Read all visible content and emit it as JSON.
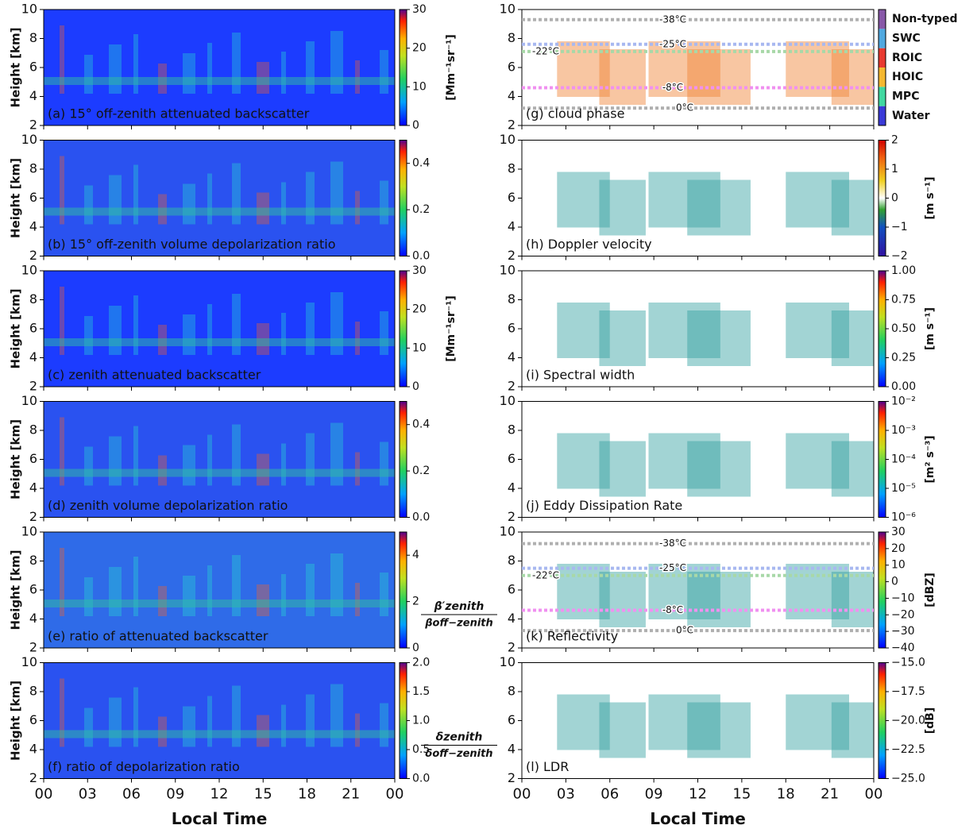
{
  "chart_data": [
    {
      "type": "heatmap",
      "label": "(a) 15° off-zenith attenuated backscatter",
      "ylabel": "Height [km]",
      "ylim": [
        2,
        10
      ],
      "yticks": [
        2,
        4,
        6,
        8,
        10
      ],
      "xlim": [
        0,
        24
      ],
      "xticks": [
        0,
        3,
        6,
        9,
        12,
        15,
        18,
        21,
        24
      ],
      "background": "#1c3cff",
      "colorbar": {
        "lim": [
          0,
          30
        ],
        "ticks": [
          0,
          10,
          20,
          30
        ],
        "label": "[Mm⁻¹sr⁻¹]",
        "colormap": "jet"
      }
    },
    {
      "type": "heatmap",
      "label": "(b) 15° off-zenith volume depolarization ratio",
      "ylabel": "Height [km]",
      "ylim": [
        2,
        10
      ],
      "yticks": [
        2,
        4,
        6,
        8,
        10
      ],
      "xlim": [
        0,
        24
      ],
      "xticks": [
        0,
        3,
        6,
        9,
        12,
        15,
        18,
        21,
        24
      ],
      "background": "#2a52f0",
      "colorbar": {
        "lim": [
          0,
          0.5
        ],
        "ticks": [
          {
            "value": 0,
            "label": "0.0"
          },
          0.2,
          0.4
        ],
        "colormap": "jet"
      }
    },
    {
      "type": "heatmap",
      "label": "(c) zenith attenuated backscatter",
      "ylabel": "Height [km]",
      "ylim": [
        2,
        10
      ],
      "yticks": [
        2,
        4,
        6,
        8,
        10
      ],
      "xlim": [
        0,
        24
      ],
      "xticks": [
        0,
        3,
        6,
        9,
        12,
        15,
        18,
        21,
        24
      ],
      "background": "#1c3cff",
      "colorbar": {
        "lim": [
          0,
          30
        ],
        "ticks": [
          0,
          10,
          20,
          30
        ],
        "label": "[Mm⁻¹sr⁻¹]",
        "colormap": "jet"
      }
    },
    {
      "type": "heatmap",
      "label": "(d) zenith volume depolarization ratio",
      "ylabel": "Height [km]",
      "ylim": [
        2,
        10
      ],
      "yticks": [
        2,
        4,
        6,
        8,
        10
      ],
      "xlim": [
        0,
        24
      ],
      "xticks": [
        0,
        3,
        6,
        9,
        12,
        15,
        18,
        21,
        24
      ],
      "background": "#2a52f0",
      "colorbar": {
        "lim": [
          0,
          0.5
        ],
        "ticks": [
          {
            "value": 0,
            "label": "0.0"
          },
          0.2,
          0.4
        ],
        "colormap": "jet"
      }
    },
    {
      "type": "heatmap",
      "label": "(e) ratio of attenuated backscatter",
      "ylabel": "Height [km]",
      "ylim": [
        2,
        10
      ],
      "yticks": [
        2,
        4,
        6,
        8,
        10
      ],
      "xlim": [
        0,
        24
      ],
      "xticks": [
        0,
        3,
        6,
        9,
        12,
        15,
        18,
        21,
        24
      ],
      "background": "#2f6be8",
      "colorbar": {
        "lim": [
          0,
          5
        ],
        "ticks": [
          0,
          2,
          4
        ],
        "numerator": "β′zenith",
        "denominator": "βoff−zenith",
        "colormap": "jet"
      }
    },
    {
      "type": "heatmap",
      "label": "(f) ratio of depolarization ratio",
      "ylabel": "Height [km]",
      "ylim": [
        2,
        10
      ],
      "yticks": [
        2,
        4,
        6,
        8,
        10
      ],
      "xlim": [
        0,
        24
      ],
      "xticks": [
        {
          "value": 0,
          "label": "00"
        },
        {
          "value": 3,
          "label": "03"
        },
        {
          "value": 6,
          "label": "06"
        },
        {
          "value": 9,
          "label": "09"
        },
        12,
        15,
        18,
        21,
        {
          "value": 24,
          "label": "00"
        }
      ],
      "xlabel": "Local Time",
      "background": "#2a52f0",
      "colorbar": {
        "lim": [
          0,
          2
        ],
        "ticks": [
          {
            "value": 0,
            "label": "0.0"
          },
          {
            "value": 0.5,
            "label": "0.5"
          },
          {
            "value": 1,
            "label": "1.0"
          },
          {
            "value": 1.5,
            "label": "1.5"
          },
          {
            "value": 2,
            "label": "2.0"
          }
        ],
        "numerator": "δzenith",
        "denominator": "δoff−zenith",
        "colormap": "jet"
      }
    },
    {
      "type": "heatmap",
      "label": "(g) cloud phase",
      "ylim": [
        2,
        10
      ],
      "yticks": [
        2,
        4,
        6,
        8,
        10
      ],
      "xlim": [
        0,
        24
      ],
      "xticks": [
        0,
        3,
        6,
        9,
        12,
        15,
        18,
        21,
        24
      ],
      "background": "#ffffff",
      "colorbar": {
        "categories": [
          "Water",
          "MPC",
          "HOIC",
          "ROIC",
          "SWC",
          "Non-typed"
        ],
        "colors": [
          "#3a3ad8",
          "#40d8a0",
          "#f5b830",
          "#e83a30",
          "#50a8e0",
          "#8858a8"
        ]
      },
      "isotherms": [
        {
          "label": "-38°C",
          "height": 9.3,
          "color": "#b0b0b0",
          "text_color": "#222222"
        },
        {
          "label": "-25°C",
          "height": 7.6,
          "color": "#a8b8f0",
          "text_color": "#2020d0"
        },
        {
          "label": "-22°C",
          "height": 7.1,
          "color": "#a8d8a8",
          "text_color": "#208020"
        },
        {
          "label": "-8°C",
          "height": 4.6,
          "color": "#f090f0",
          "text_color": "#d020d0"
        },
        {
          "label": "0°C",
          "height": 3.2,
          "color": "#b0b0b0",
          "text_color": "#222222"
        }
      ]
    },
    {
      "type": "heatmap",
      "label": "(h) Doppler velocity",
      "ylim": [
        2,
        10
      ],
      "yticks": [
        2,
        4,
        6,
        8,
        10
      ],
      "xlim": [
        0,
        24
      ],
      "xticks": [
        0,
        3,
        6,
        9,
        12,
        15,
        18,
        21,
        24
      ],
      "background": "#ffffff",
      "colorbar": {
        "lim": [
          -2,
          2
        ],
        "ticks": [
          {
            "value": -2,
            "label": "−2"
          },
          {
            "value": -1,
            "label": "−1"
          },
          0,
          1,
          2
        ],
        "label": "[m s⁻¹]",
        "colormap": "diverging"
      }
    },
    {
      "type": "heatmap",
      "label": "(i) Spectral width",
      "ylim": [
        2,
        10
      ],
      "yticks": [
        2,
        4,
        6,
        8,
        10
      ],
      "xlim": [
        0,
        24
      ],
      "xticks": [
        0,
        3,
        6,
        9,
        12,
        15,
        18,
        21,
        24
      ],
      "background": "#ffffff",
      "colorbar": {
        "lim": [
          0,
          1
        ],
        "ticks": [
          {
            "value": 0,
            "label": "0.00"
          },
          {
            "value": 0.25,
            "label": "0.25"
          },
          {
            "value": 0.5,
            "label": "0.50"
          },
          {
            "value": 0.75,
            "label": "0.75"
          },
          {
            "value": 1,
            "label": "1.00"
          }
        ],
        "label": "[m s⁻¹]",
        "colormap": "jet"
      }
    },
    {
      "type": "heatmap",
      "label": "(j) Eddy Dissipation Rate",
      "ylim": [
        2,
        10
      ],
      "yticks": [
        2,
        4,
        6,
        8,
        10
      ],
      "xlim": [
        0,
        24
      ],
      "xticks": [
        0,
        3,
        6,
        9,
        12,
        15,
        18,
        21,
        24
      ],
      "background": "#ffffff",
      "colorbar": {
        "lim": [
          1e-06,
          0.01
        ],
        "log": true,
        "ticks": [
          {
            "value": 1e-06,
            "label": "10⁻⁶"
          },
          {
            "value": 1e-05,
            "label": "10⁻⁵"
          },
          {
            "value": 0.0001,
            "label": "10⁻⁴"
          },
          {
            "value": 0.001,
            "label": "10⁻³"
          },
          {
            "value": 0.01,
            "label": "10⁻²"
          }
        ],
        "label": "[m² s⁻³]",
        "colormap": "jet"
      }
    },
    {
      "type": "heatmap",
      "label": "(k) Reflectivity",
      "ylim": [
        2,
        10
      ],
      "yticks": [
        2,
        4,
        6,
        8,
        10
      ],
      "xlim": [
        0,
        24
      ],
      "xticks": [
        0,
        3,
        6,
        9,
        12,
        15,
        18,
        21,
        24
      ],
      "background": "#ffffff",
      "colorbar": {
        "lim": [
          -40,
          30
        ],
        "ticks": [
          {
            "value": -40,
            "label": "−40"
          },
          {
            "value": -30,
            "label": "−30"
          },
          {
            "value": -20,
            "label": "−20"
          },
          {
            "value": -10,
            "label": "−10"
          },
          0,
          10,
          20,
          30
        ],
        "label": "[dBZ]",
        "colormap": "jet"
      },
      "isotherms": [
        {
          "label": "-38°C",
          "height": 9.2,
          "color": "#b0b0b0",
          "text_color": "#222222"
        },
        {
          "label": "-25°C",
          "height": 7.5,
          "color": "#a8b8f0",
          "text_color": "#2020d0"
        },
        {
          "label": "-22°C",
          "height": 7.0,
          "color": "#a8d8a8",
          "text_color": "#208020"
        },
        {
          "label": "-8°C",
          "height": 4.6,
          "color": "#f090f0",
          "text_color": "#d020d0"
        },
        {
          "label": "0°C",
          "height": 3.2,
          "color": "#b0b0b0",
          "text_color": "#222222"
        }
      ]
    },
    {
      "type": "heatmap",
      "label": "(l) LDR",
      "ylim": [
        2,
        10
      ],
      "yticks": [
        2,
        4,
        6,
        8,
        10
      ],
      "xlim": [
        0,
        24
      ],
      "xticks": [
        {
          "value": 0,
          "label": "00"
        },
        {
          "value": 3,
          "label": "03"
        },
        {
          "value": 6,
          "label": "06"
        },
        {
          "value": 9,
          "label": "09"
        },
        12,
        15,
        18,
        21,
        {
          "value": 24,
          "label": "00"
        }
      ],
      "xlabel": "Local Time",
      "background": "#ffffff",
      "colorbar": {
        "lim": [
          -25,
          -15
        ],
        "ticks": [
          {
            "value": -25,
            "label": "−25.0"
          },
          {
            "value": -22.5,
            "label": "−22.5"
          },
          {
            "value": -20,
            "label": "−20.0"
          },
          {
            "value": -17.5,
            "label": "−17.5"
          },
          {
            "value": -15,
            "label": "−15.0"
          }
        ],
        "label": "[dB]",
        "colormap": "jet"
      }
    }
  ]
}
